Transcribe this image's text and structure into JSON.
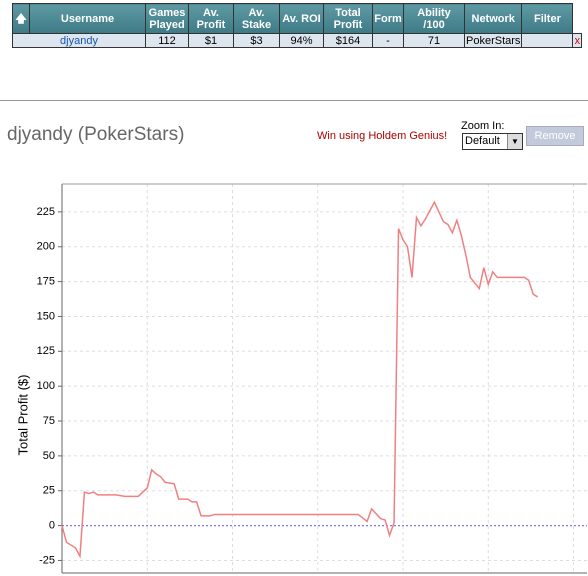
{
  "table": {
    "headers": [
      "Username",
      "Games Played",
      "Av. Profit",
      "Av. Stake",
      "Av. ROI",
      "Total Profit",
      "Form",
      "Ability /100",
      "Network",
      "Filter"
    ],
    "row": {
      "username": "djyandy",
      "games_played": "112",
      "av_profit": "$1",
      "av_stake": "$3",
      "av_roi": "94%",
      "total_profit": "$164",
      "form": "-",
      "ability": "71",
      "network": "PokerStars",
      "remove": "x"
    }
  },
  "profile_title": "djyandy (PokerStars)",
  "promo": "Win using Holdem Genius!",
  "zoom_label": "Zoom In:",
  "zoom_option": "Default",
  "remove_button": "Remove",
  "chart_data": {
    "type": "line",
    "y_label": "Total Profit ($)",
    "color": "#f08080",
    "zero_line_color": "#7a7aee",
    "grid": true,
    "x": [
      0,
      1,
      3,
      4,
      5,
      6,
      7,
      8,
      12,
      14,
      17,
      19,
      20,
      21,
      22,
      23,
      25,
      26,
      28,
      29,
      30,
      31,
      33,
      34,
      66,
      68,
      69,
      71,
      72,
      73,
      74,
      75,
      76,
      77,
      78,
      79,
      80,
      81,
      82,
      83,
      84,
      85,
      86,
      87,
      88,
      89,
      90,
      91,
      93,
      94,
      95,
      96,
      97,
      103,
      104,
      105,
      106
    ],
    "values": [
      0,
      -12,
      -16,
      -22,
      24,
      23,
      24,
      22,
      22,
      21,
      21,
      27,
      40,
      37,
      35,
      31,
      30,
      19,
      19,
      17,
      17,
      7,
      7,
      8,
      8,
      3,
      12,
      5,
      4,
      -7,
      2,
      213,
      205,
      200,
      178,
      221,
      215,
      220,
      226,
      232,
      225,
      218,
      216,
      210,
      219,
      208,
      194,
      178,
      170,
      185,
      173,
      182,
      178,
      178,
      176,
      166,
      164
    ],
    "xlim": [
      0,
      117
    ],
    "xticks": [
      19,
      38,
      57,
      76,
      95,
      114
    ],
    "ylim": [
      -34,
      245
    ],
    "yticks": [
      -25,
      0,
      25,
      50,
      75,
      100,
      125,
      150,
      175,
      200,
      225
    ]
  }
}
